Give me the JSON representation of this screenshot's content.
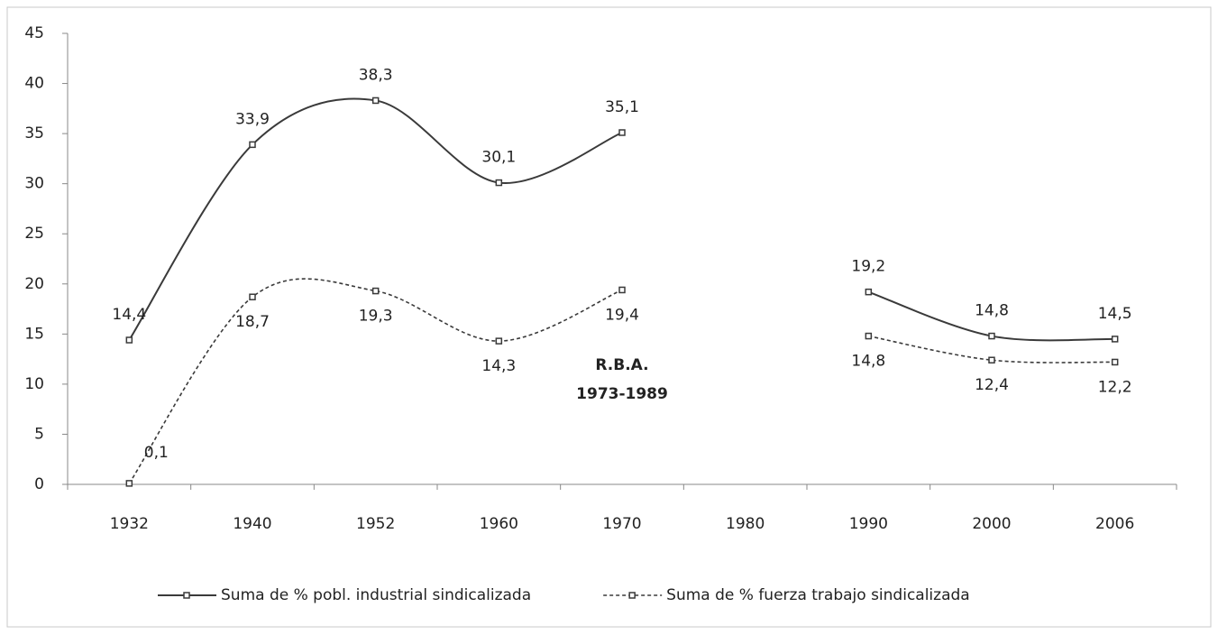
{
  "chart_data": {
    "type": "line",
    "smooth": true,
    "categories": [
      "1932",
      "1940",
      "1952",
      "1960",
      "1970",
      "1980",
      "1990",
      "2000",
      "2006"
    ],
    "series": [
      {
        "name": "Suma de % pobl. industrial sindicalizada",
        "color": "#3a3a3a",
        "style": "solid",
        "values": [
          14.4,
          33.9,
          38.3,
          30.1,
          35.1,
          null,
          19.2,
          14.8,
          14.5
        ],
        "value_labels": [
          "14,4",
          "33,9",
          "38,3",
          "30,1",
          "35,1",
          null,
          "19,2",
          "14,8",
          "14,5"
        ]
      },
      {
        "name": "Suma de % fuerza trabajo  sindicalizada",
        "color": "#3a3a3a",
        "style": "dashed",
        "values": [
          0.1,
          18.7,
          19.3,
          14.3,
          19.4,
          null,
          14.8,
          12.4,
          12.2
        ],
        "value_labels": [
          "0,1",
          "18,7",
          "19,3",
          "14,3",
          "19,4",
          null,
          "14,8",
          "12,4",
          "12,2"
        ]
      }
    ],
    "annotation": [
      "R.B.A.",
      "1973-1989"
    ],
    "ylim": [
      0,
      45
    ],
    "yticks": [
      0,
      5,
      10,
      15,
      20,
      25,
      30,
      35,
      40,
      45
    ],
    "grid": false,
    "legend": "bottom"
  }
}
